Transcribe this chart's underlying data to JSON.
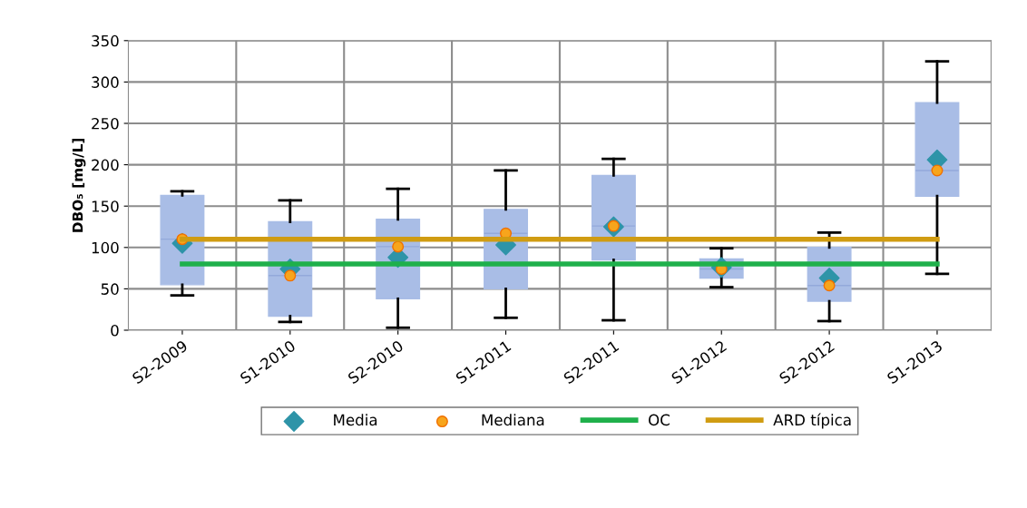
{
  "chart_data": {
    "type": "box",
    "ylabel": "DBO₅ [mg/L]",
    "categories": [
      "S2-2009",
      "S1-2010",
      "S2-2010",
      "S1-2011",
      "S2-2011",
      "S1-2012",
      "S2-2012",
      "S1-2013"
    ],
    "boxes": [
      {
        "low": 42,
        "q1": 55,
        "median": 110,
        "q3": 163,
        "high": 168
      },
      {
        "low": 10,
        "q1": 17,
        "median": 66,
        "q3": 131,
        "high": 157
      },
      {
        "low": 3,
        "q1": 38,
        "median": 101,
        "q3": 134,
        "high": 171
      },
      {
        "low": 15,
        "q1": 50,
        "median": 117,
        "q3": 146,
        "high": 193
      },
      {
        "low": 12,
        "q1": 85,
        "median": 126,
        "q3": 187,
        "high": 207
      },
      {
        "low": 52,
        "q1": 63,
        "median": 74,
        "q3": 86,
        "high": 99
      },
      {
        "low": 11,
        "q1": 35,
        "median": 54,
        "q3": 100,
        "high": 118
      },
      {
        "low": 68,
        "q1": 162,
        "median": 193,
        "q3": 275,
        "high": 325
      }
    ],
    "color": "#a9bde6",
    "series": [
      {
        "name": "Media",
        "type": "scatter",
        "marker": "diamond",
        "color": "#2e94a8",
        "values": [
          105,
          74,
          88,
          103,
          125,
          76,
          63,
          206
        ]
      },
      {
        "name": "Mediana",
        "type": "scatter",
        "marker": "circle",
        "color": "#f7a51c",
        "values": [
          110,
          66,
          101,
          117,
          126,
          74,
          54,
          193
        ]
      },
      {
        "name": "OC",
        "type": "line",
        "color": "#1fb04b",
        "values": [
          80,
          80,
          80,
          80,
          80,
          80,
          80,
          80
        ]
      },
      {
        "name": "ARD típica",
        "type": "line",
        "color": "#d09c12",
        "values": [
          110,
          110,
          110,
          110,
          110,
          110,
          110,
          110
        ]
      }
    ],
    "ylim": [
      0,
      350
    ],
    "yticks": [
      0,
      50,
      100,
      150,
      200,
      250,
      300,
      350
    ],
    "grid": true,
    "legend": "bottom"
  }
}
